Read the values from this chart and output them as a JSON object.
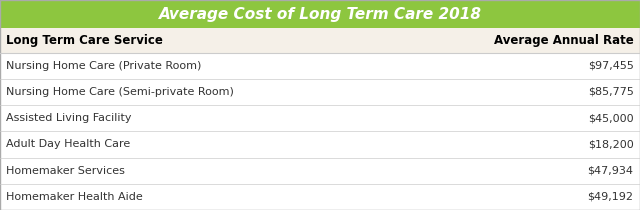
{
  "title": "Average Cost of Long Term Care 2018",
  "title_bg_color": "#8dc63f",
  "title_text_color": "#ffffff",
  "header_left": "Long Term Care Service",
  "header_right": "Average Annual Rate",
  "header_bg_color": "#f5f0e8",
  "row_bg_color": "#ffffff",
  "divider_color": "#cccccc",
  "text_color": "#333333",
  "header_text_color": "#000000",
  "rows": [
    [
      "Nursing Home Care (Private Room)",
      "$97,455"
    ],
    [
      "Nursing Home Care (Semi-private Room)",
      "$85,775"
    ],
    [
      "Assisted Living Facility",
      "$45,000"
    ],
    [
      "Adult Day Health Care",
      "$18,200"
    ],
    [
      "Homemaker Services",
      "$47,934"
    ],
    [
      "Homemaker Health Aide",
      "$49,192"
    ]
  ],
  "figsize": [
    6.4,
    2.1
  ],
  "dpi": 100
}
